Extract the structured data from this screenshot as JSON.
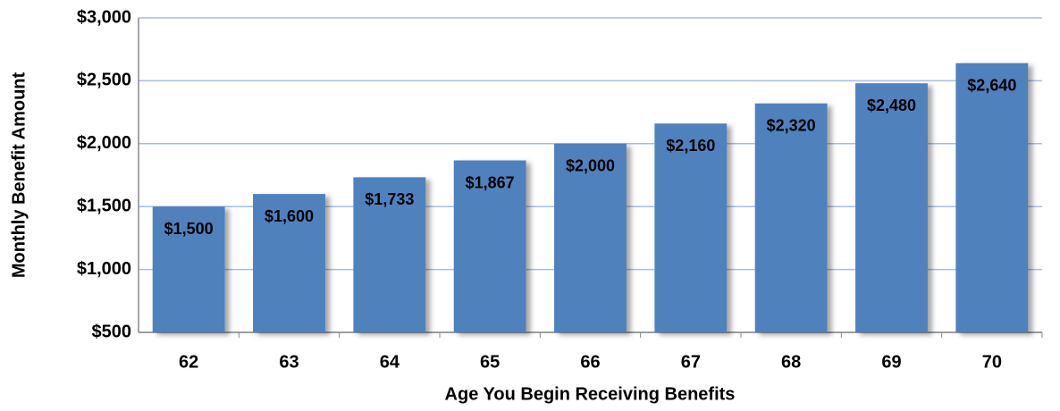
{
  "chart_data": {
    "type": "bar",
    "x_label": "Age You Begin Receiving Benefits",
    "y_label": "Monthly Benefit Amount",
    "categories": [
      "62",
      "63",
      "64",
      "65",
      "66",
      "67",
      "68",
      "69",
      "70"
    ],
    "values": [
      1500,
      1600,
      1733,
      1867,
      2000,
      2160,
      2320,
      2480,
      2640
    ],
    "value_labels": [
      "$1,500",
      "$1,600",
      "$1,733",
      "$1,867",
      "$2,000",
      "$2,160",
      "$2,320",
      "$2,480",
      "$2,640"
    ],
    "color": "#4f81bd",
    "ylim": [
      500,
      3000
    ],
    "yticks": [
      {
        "value": 500,
        "label": "$500"
      },
      {
        "value": 1000,
        "label": "$1,000"
      },
      {
        "value": 1500,
        "label": "$1,500"
      },
      {
        "value": 2000,
        "label": "$2,000"
      },
      {
        "value": 2500,
        "label": "$2,500"
      },
      {
        "value": 3000,
        "label": "$3,000"
      }
    ],
    "grid": true
  }
}
